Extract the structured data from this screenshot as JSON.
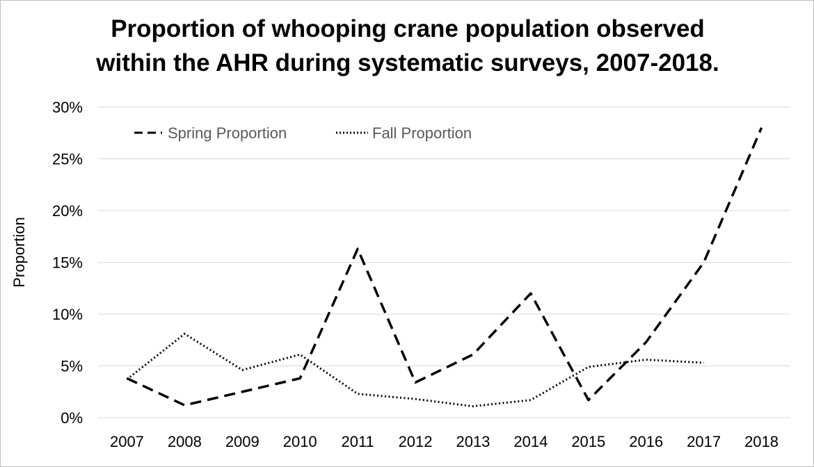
{
  "chart_data": {
    "type": "line",
    "title": "Proportion of whooping crane population observed within the AHR during systematic surveys, 2007-2018.",
    "title_lines": [
      "Proportion of whooping crane population observed",
      "within the AHR during systematic surveys, 2007-2018."
    ],
    "xlabel": "",
    "ylabel": "Proportion",
    "categories": [
      "2007",
      "2008",
      "2009",
      "2010",
      "2011",
      "2012",
      "2013",
      "2014",
      "2015",
      "2016",
      "2017",
      "2018"
    ],
    "ylim": [
      0,
      30
    ],
    "yticks": [
      0,
      5,
      10,
      15,
      20,
      25,
      30
    ],
    "ytick_labels": [
      "0%",
      "5%",
      "10%",
      "15%",
      "20%",
      "25%",
      "30%"
    ],
    "grid": true,
    "legend_position": "top-left",
    "series": [
      {
        "name": "Spring Proportion",
        "style": "dashed",
        "color": "#000000",
        "values": [
          3.8,
          1.2,
          2.5,
          3.8,
          16.3,
          3.4,
          6.1,
          12.0,
          1.7,
          7.3,
          15.0,
          28.0
        ]
      },
      {
        "name": "Fall Proportion",
        "style": "dotted",
        "color": "#000000",
        "values": [
          3.7,
          8.1,
          4.6,
          6.1,
          2.3,
          1.8,
          1.1,
          1.7,
          4.9,
          5.6,
          5.3,
          null
        ]
      }
    ]
  }
}
